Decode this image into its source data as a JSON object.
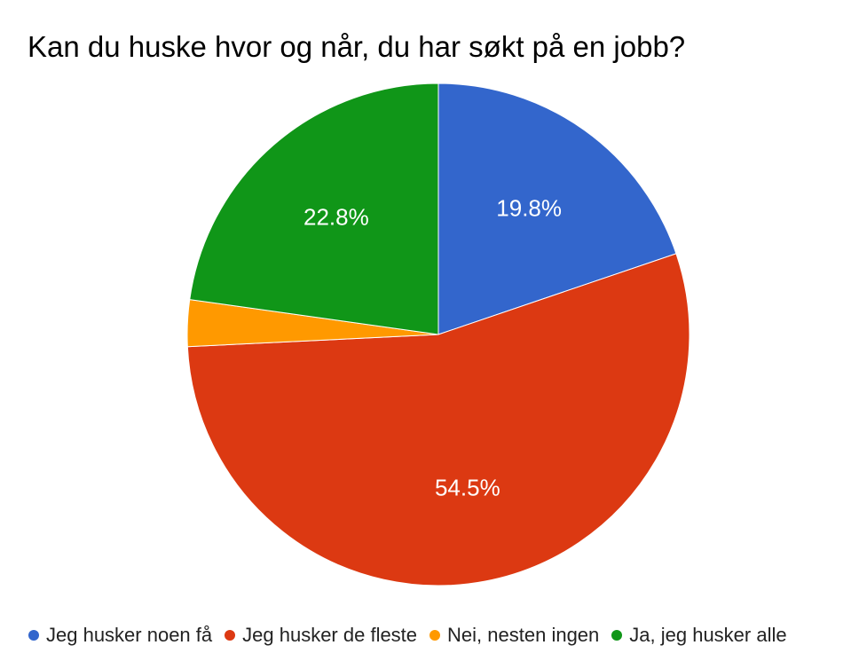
{
  "chart_data": {
    "type": "pie",
    "title": "Kan du huske hvor og når, du har søkt på en jobb?",
    "slices": [
      {
        "name": "Jeg husker noen få",
        "value": 19.8,
        "label": "19.8%",
        "color": "#3366cc"
      },
      {
        "name": "Jeg husker de fleste",
        "value": 54.5,
        "label": "54.5%",
        "color": "#dc3912"
      },
      {
        "name": "Nei, nesten ingen",
        "value": 3.0,
        "label": "",
        "color": "#ff9900"
      },
      {
        "name": "Ja, jeg husker alle",
        "value": 22.8,
        "label": "22.8%",
        "color": "#109618"
      }
    ],
    "legend_position": "bottom",
    "start_angle": "top",
    "direction": "clockwise"
  }
}
